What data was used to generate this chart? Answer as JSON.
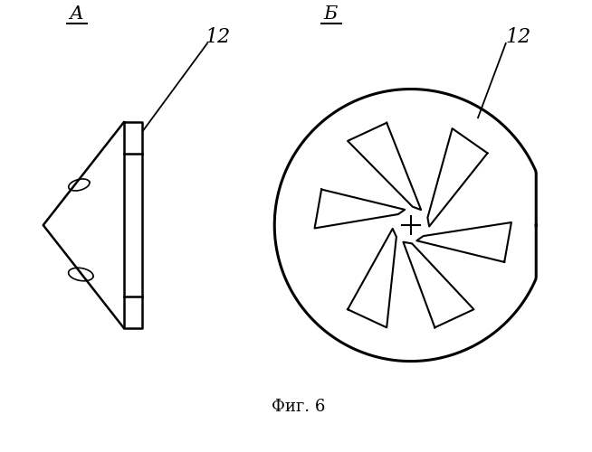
{
  "title": "Фиг. 6",
  "label_A": "А",
  "label_B": "Б",
  "label_num": "12",
  "bg_color": "#ffffff",
  "line_color": "#000000",
  "fig_width": 6.54,
  "fig_height": 5.0,
  "dpi": 100
}
